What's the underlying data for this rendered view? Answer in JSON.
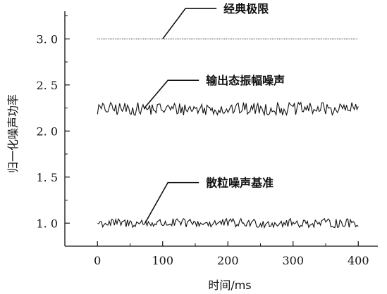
{
  "chart_data": {
    "type": "line",
    "xlabel": "时间/ms",
    "ylabel": "归一化噪声功率",
    "xlim": [
      -50,
      430
    ],
    "ylim": [
      0.75,
      3.3
    ],
    "x_ticks": [
      0,
      100,
      200,
      300,
      400
    ],
    "y_ticks": [
      1.0,
      1.5,
      2.0,
      2.5,
      3.0
    ],
    "x_tick_labels": [
      "0",
      "100",
      "200",
      "300",
      "400"
    ],
    "y_tick_labels": [
      "1. 0",
      "1. 5",
      "2. 0",
      "2. 5",
      "3. 0"
    ],
    "grid": false,
    "series": [
      {
        "name": "经典极限",
        "x": [
          0,
          400
        ],
        "values": [
          3.0,
          3.0
        ],
        "style": "dotted",
        "noise": 0
      },
      {
        "name": "输出态振幅噪声",
        "x": [
          0,
          400
        ],
        "values": [
          2.24,
          2.24
        ],
        "style": "solid",
        "noise": 0.07
      },
      {
        "name": "散粒噪声基准",
        "x": [
          0,
          400
        ],
        "values": [
          1.0,
          1.0
        ],
        "style": "solid",
        "noise": 0.05
      }
    ],
    "annotations": [
      {
        "text": "经典极限",
        "target": [
          100,
          3.0
        ],
        "label_anchor": [
          135,
          3.33
        ]
      },
      {
        "text": "输出态振幅噪声",
        "target": [
          72,
          2.25
        ],
        "label_anchor": [
          108,
          2.55
        ]
      },
      {
        "text": "散粒噪声基准",
        "target": [
          73,
          1.0
        ],
        "label_anchor": [
          108,
          1.44
        ]
      }
    ]
  }
}
